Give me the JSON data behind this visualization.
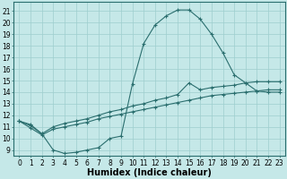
{
  "bg_color": "#c5e8e8",
  "grid_color": "#9ecece",
  "line_color": "#2a6e6e",
  "xlabel": "Humidex (Indice chaleur)",
  "xlabel_fontsize": 7,
  "xlim": [
    -0.5,
    23.5
  ],
  "ylim": [
    8.5,
    21.8
  ],
  "xticks": [
    0,
    1,
    2,
    3,
    4,
    5,
    6,
    7,
    8,
    9,
    10,
    11,
    12,
    13,
    14,
    15,
    16,
    17,
    18,
    19,
    20,
    21,
    22,
    23
  ],
  "yticks": [
    9,
    10,
    11,
    12,
    13,
    14,
    15,
    16,
    17,
    18,
    19,
    20,
    21
  ],
  "tick_fontsize": 5.5,
  "curve1_x": [
    0,
    1,
    2,
    3,
    4,
    5,
    6,
    7,
    8,
    9,
    10,
    11,
    12,
    13,
    14,
    15,
    16,
    17,
    18,
    19,
    20,
    21,
    22,
    23
  ],
  "curve1_y": [
    11.5,
    11.2,
    10.4,
    9.0,
    8.7,
    8.8,
    9.0,
    9.2,
    10.0,
    10.2,
    14.7,
    18.2,
    19.8,
    20.6,
    21.1,
    21.1,
    20.3,
    19.0,
    17.4,
    15.5,
    14.8,
    14.1,
    14.0,
    14.0
  ],
  "curve2_x": [
    0,
    1,
    2,
    3,
    4,
    5,
    6,
    7,
    8,
    9,
    10,
    11,
    12,
    13,
    14,
    15,
    16,
    17,
    18,
    19,
    20,
    21,
    22,
    23
  ],
  "curve2_y": [
    11.5,
    11.1,
    10.4,
    11.0,
    11.3,
    11.5,
    11.7,
    12.0,
    12.3,
    12.5,
    12.8,
    13.0,
    13.3,
    13.5,
    13.8,
    14.8,
    14.2,
    14.4,
    14.5,
    14.6,
    14.8,
    14.9,
    14.9,
    14.9
  ],
  "curve3_x": [
    0,
    1,
    2,
    3,
    4,
    5,
    6,
    7,
    8,
    9,
    10,
    11,
    12,
    13,
    14,
    15,
    16,
    17,
    18,
    19,
    20,
    21,
    22,
    23
  ],
  "curve3_y": [
    11.5,
    10.9,
    10.3,
    10.8,
    11.0,
    11.2,
    11.4,
    11.7,
    11.9,
    12.1,
    12.3,
    12.5,
    12.7,
    12.9,
    13.1,
    13.3,
    13.5,
    13.7,
    13.8,
    13.9,
    14.0,
    14.1,
    14.2,
    14.2
  ],
  "figsize": [
    3.2,
    2.0
  ],
  "dpi": 100
}
